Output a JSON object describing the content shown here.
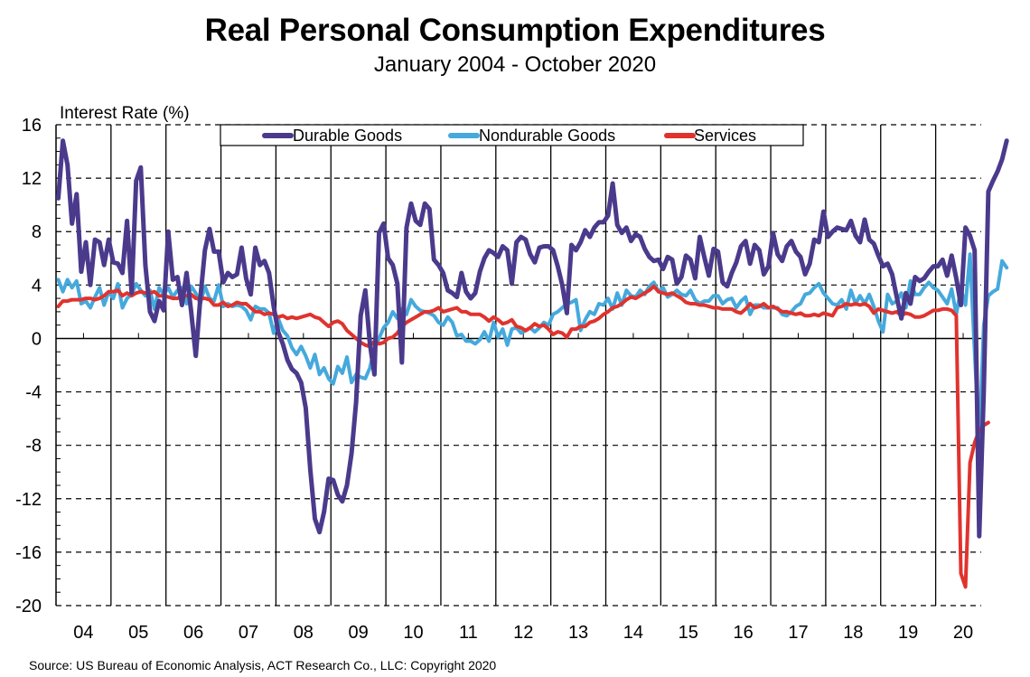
{
  "chart_data": {
    "type": "line",
    "title": "Real Personal Consumption Expenditures",
    "subtitle": "January 2004 - October 2020",
    "ylabel": "Interest Rate (%)",
    "xlabel": "",
    "ylim": [
      -20,
      16
    ],
    "yticks": [
      16,
      12,
      8,
      4,
      0,
      -4,
      -8,
      -12,
      -16,
      -20
    ],
    "xtick_labels": [
      "04",
      "05",
      "06",
      "07",
      "08",
      "09",
      "10",
      "11",
      "12",
      "13",
      "14",
      "15",
      "16",
      "17",
      "18",
      "19",
      "20"
    ],
    "x_start": "2004-01",
    "x_end": "2020-10",
    "frequency": "monthly",
    "grid": "horizontal dashed at major y ticks, vertical solid at year boundaries",
    "legend_placement": "top-center",
    "source": "Source: US Bureau of Economic Analysis, ACT Research Co., LLC: Copyright 2020",
    "series": [
      {
        "name": "Durable Goods",
        "color": "#4b3a8c",
        "values": [
          10.5,
          14.8,
          13,
          8.6,
          10.8,
          5,
          7.2,
          4,
          7.4,
          7.2,
          5.5,
          7.4,
          5.7,
          5.6,
          4.9,
          8.8,
          3.4,
          11.8,
          12.8,
          5.5,
          2,
          1.3,
          2.8,
          2.1,
          8,
          4.4,
          4.6,
          2.5,
          4.9,
          2,
          -1.3,
          3,
          6.6,
          8.2,
          6.5,
          6.5,
          4.2,
          4.9,
          4.6,
          4.8,
          6.8,
          4.5,
          3.3,
          6.8,
          5.5,
          5.8,
          4.9,
          2.4,
          0.5,
          -0.4,
          -1.6,
          -2.3,
          -2.6,
          -3.3,
          -5.2,
          -9.8,
          -13.5,
          -14.5,
          -13,
          -10.5,
          -10.6,
          -11.7,
          -12.2,
          -11,
          -8.6,
          -4.8,
          1.7,
          3.6,
          -0.4,
          -2.7,
          7.9,
          8.6,
          6,
          5.5,
          4.1,
          -1.8,
          8.3,
          10.1,
          8.8,
          8.5,
          10.1,
          9.7,
          5.9,
          5.5,
          4.9,
          3.6,
          3.4,
          3.1,
          4.9,
          3.5,
          3,
          3.4,
          5,
          6,
          6.6,
          6.4,
          6.1,
          6.9,
          6.6,
          4.1,
          7.2,
          7.6,
          7.4,
          6.3,
          5.7,
          6.8,
          6.9,
          6.9,
          6.6,
          5.4,
          4,
          1.9,
          7,
          6.6,
          7.2,
          8.1,
          7.6,
          8.3,
          8.7,
          8.7,
          9.2,
          11.6,
          8.5,
          7.9,
          8.3,
          7.3,
          7.8,
          7.6,
          6.7,
          6.1,
          5.8,
          5.9,
          5.2,
          6.1,
          5.9,
          4.1,
          4.6,
          6.2,
          5.9,
          4.5,
          7.6,
          6.1,
          4.7,
          6.7,
          6.5,
          4.2,
          3.9,
          4.9,
          5.7,
          6.9,
          7.3,
          5.6,
          7,
          6.6,
          4.8,
          5.4,
          7.9,
          6.3,
          5.8,
          6.9,
          7.3,
          6.5,
          6.1,
          4.8,
          5.6,
          7.4,
          7.2,
          9.5,
          7.6,
          8,
          8.3,
          8.2,
          8.1,
          8.8,
          7.7,
          7.2,
          8.9,
          7.4,
          7.1,
          6.2,
          5.4,
          5.6,
          4.8,
          3.1,
          1.5,
          3.4,
          2.6,
          4.6,
          4.3,
          4.5,
          5,
          5.4,
          5.4,
          5.9,
          4.7,
          6.2,
          4.5,
          2.5,
          8.3,
          7.7,
          6.6,
          -14.8,
          -4,
          11,
          11.8,
          12.5,
          13.4,
          14.8
        ]
      },
      {
        "name": "Nondurable Goods",
        "color": "#45a9dc",
        "values": [
          4.4,
          3.5,
          4.4,
          3.8,
          4.3,
          2.6,
          2.8,
          2.3,
          3.1,
          3.8,
          2.5,
          3.5,
          3,
          4.1,
          2.3,
          3,
          3.3,
          4.1,
          3.6,
          3.2,
          3.6,
          2.2,
          3.8,
          3.3,
          3.8,
          3.1,
          3.6,
          3.8,
          2.6,
          3.9,
          3.4,
          2.6,
          3.9,
          3,
          2.8,
          4,
          2.4,
          2.6,
          2.4,
          2.5,
          2.4,
          2.1,
          1.4,
          2.4,
          2.2,
          2.2,
          1.9,
          0.4,
          1.5,
          0.6,
          0.2,
          -0.7,
          -1.2,
          -0.6,
          -1.3,
          -2.2,
          -1.2,
          -2.7,
          -2.2,
          -3,
          -3.4,
          -2.1,
          -2.6,
          -1.4,
          -3.3,
          -2.7,
          -2.9,
          -3,
          -2.2,
          -0.7,
          0,
          0.8,
          1.2,
          2,
          1.5,
          2.2,
          1.8,
          2.9,
          2.4,
          2.1,
          2,
          1.9,
          1.7,
          1.2,
          1,
          1.6,
          1.2,
          0.2,
          0.3,
          -0.2,
          -0.2,
          -0.4,
          -0.1,
          0.5,
          -0.2,
          1.2,
          0.1,
          0.7,
          -0.5,
          0.7,
          0.8,
          0.4,
          0.6,
          0.8,
          0.5,
          0.8,
          1.2,
          1,
          1.8,
          2,
          2.3,
          2.6,
          2.7,
          2.9,
          0.6,
          1.4,
          2,
          1.8,
          2.6,
          2.5,
          3,
          2.2,
          3.4,
          2.5,
          3.6,
          3.2,
          3.1,
          3.6,
          3.3,
          3.9,
          4.2,
          3.5,
          3.8,
          3.1,
          3.3,
          3.6,
          3.3,
          3.2,
          3.6,
          2.9,
          2.6,
          2.8,
          2.8,
          3.2,
          3.2,
          2.6,
          2.9,
          3,
          2.3,
          2.8,
          3.1,
          1.8,
          2.5,
          2.5,
          2.3,
          2.3,
          2.3,
          2.3,
          1.8,
          1.7,
          2,
          2.4,
          2.6,
          3.3,
          3.4,
          3.8,
          4.1,
          3.4,
          3,
          2.6,
          2.5,
          2.9,
          2.2,
          3.6,
          2.6,
          3.2,
          2.6,
          3.3,
          2.4,
          1.3,
          0.5,
          3.3,
          2.6,
          2.8,
          3.4,
          2.3,
          4.3,
          3.3,
          3.3,
          3.8,
          4.2,
          3.8,
          3.6,
          3.1,
          2.6,
          3.7,
          1.8,
          3.7,
          2.5,
          6.3,
          -1,
          -8,
          1,
          3.2,
          3.5,
          3.7,
          5.8,
          5.3
        ]
      },
      {
        "name": "Services",
        "color": "#e0332e",
        "values": [
          2.4,
          2.8,
          2.8,
          2.9,
          2.9,
          2.9,
          3,
          3,
          2.9,
          3,
          3.2,
          3.5,
          3.5,
          3.6,
          3.2,
          3.4,
          3.2,
          3.4,
          3.5,
          3.4,
          3.4,
          3.5,
          3.2,
          3.2,
          3.1,
          3,
          3,
          3.2,
          3.2,
          3.3,
          3,
          3,
          3,
          2.9,
          2.5,
          2.5,
          2.7,
          2.4,
          2.5,
          2.7,
          2.6,
          2.6,
          2.3,
          2,
          2,
          1.8,
          1.9,
          1.8,
          1.6,
          1.7,
          1.5,
          1.6,
          1.5,
          1.6,
          1.7,
          1.8,
          1.6,
          1.5,
          1.2,
          0.9,
          1.2,
          1.3,
          1.1,
          0.6,
          0.3,
          0,
          -0.3,
          -0.5,
          -0.6,
          -0.2,
          -0.4,
          -0.3,
          0,
          0.1,
          0.4,
          0.9,
          1.2,
          1.4,
          1.6,
          1.8,
          2,
          2,
          2.1,
          2.3,
          2,
          2.1,
          2.2,
          2.3,
          2,
          2,
          1.8,
          1.8,
          1.8,
          1.6,
          1.3,
          1.6,
          1.4,
          1.1,
          1.2,
          1.4,
          0.9,
          0.8,
          0.6,
          0.8,
          1.1,
          0.9,
          1,
          0.7,
          0.3,
          0.5,
          0.4,
          0.1,
          0.7,
          0.7,
          0.9,
          0.9,
          1.2,
          1.3,
          1.5,
          1.8,
          2,
          2.3,
          2.4,
          2.6,
          2.9,
          3.1,
          3,
          3.2,
          3.4,
          3.6,
          3.9,
          3.5,
          3.4,
          3.3,
          3.4,
          3.2,
          3,
          2.7,
          2.6,
          2.6,
          2.5,
          2.5,
          2.4,
          2.3,
          2.3,
          2.2,
          2.2,
          2.2,
          2,
          1.9,
          2.2,
          2.6,
          2.3,
          2.4,
          2.6,
          2.3,
          2.4,
          2.2,
          2,
          2,
          1.9,
          1.8,
          1.9,
          1.7,
          1.7,
          1.8,
          1.7,
          1.9,
          1.8,
          1.7,
          2.3,
          2.4,
          2.6,
          2.5,
          2.6,
          2.5,
          2.6,
          2.4,
          1.9,
          2.2,
          2.1,
          2,
          1.9,
          2,
          1.7,
          1.9,
          1.8,
          1.6,
          1.6,
          1.7,
          1.9,
          2.1,
          2.1,
          2.2,
          2.2,
          2.1,
          1.7,
          -17.6,
          -18.6,
          -9.3,
          -7.8,
          -6.9,
          -6.5,
          -6.3
        ]
      }
    ]
  }
}
